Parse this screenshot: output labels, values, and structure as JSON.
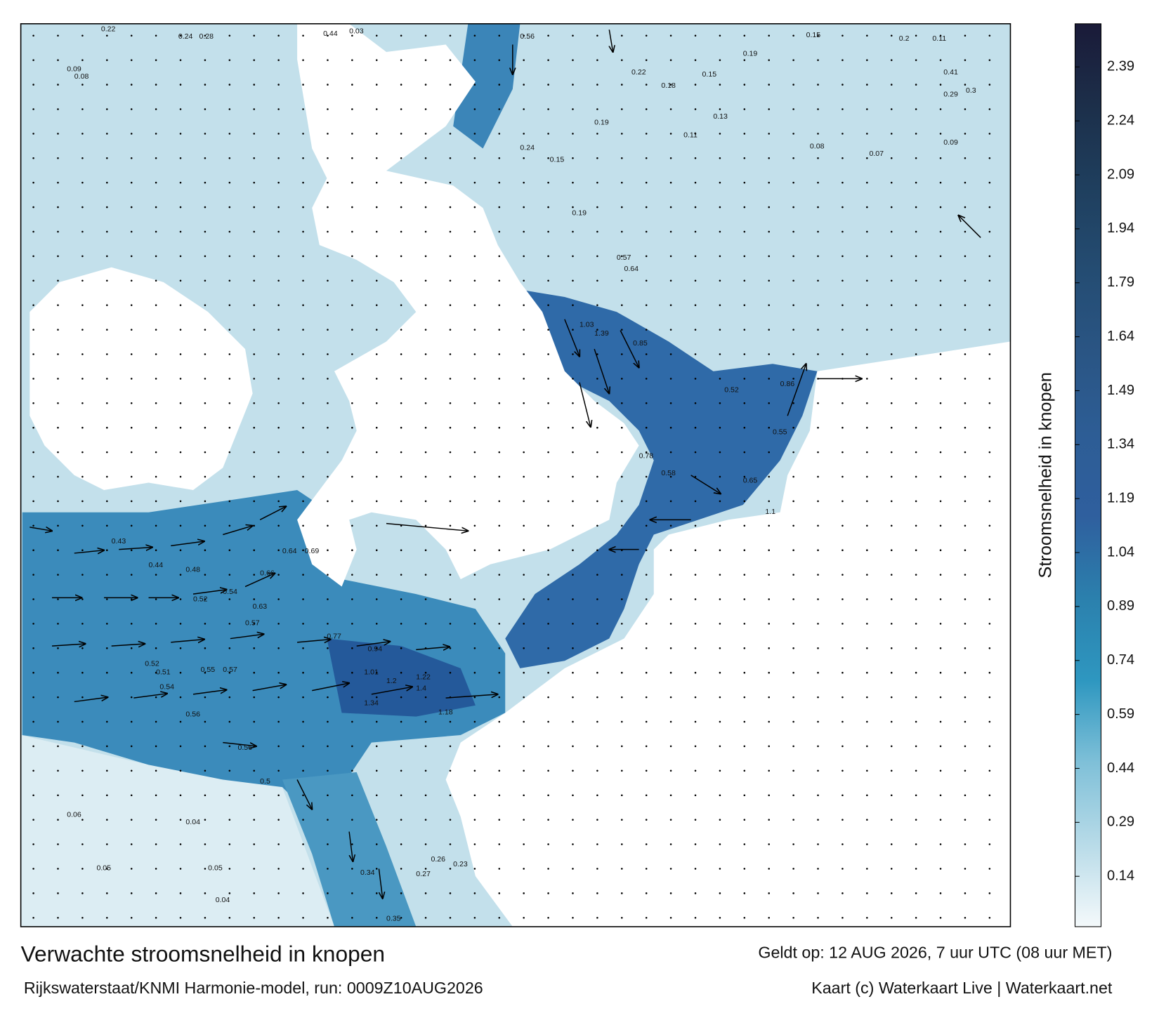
{
  "title": "Verwachte stroomsnelheid in knopen",
  "source": "Rijkswaterstaat/KNMI Harmonie-model, run: 0009Z10AUG2026",
  "valid": "Geldt op: 12 AUG 2026, 7 uur UTC (08 uur MET)",
  "credit": "Kaart (c) Waterkaart Live | Waterkaart.net",
  "colorbar": {
    "label": "Stroomsnelheid in knopen",
    "lim": [
      0,
      2.51
    ],
    "ticks": [
      0.14,
      0.29,
      0.44,
      0.59,
      0.74,
      0.89,
      1.04,
      1.19,
      1.34,
      1.49,
      1.64,
      1.79,
      1.94,
      2.09,
      2.24,
      2.39
    ],
    "colors": [
      "#f4f9fb",
      "#b8dbe8",
      "#7fc0d8",
      "#2e97c0",
      "#2b80ad",
      "#2f5f9e",
      "#2d5d95",
      "#2a5584",
      "#244c72",
      "#1f3f5e",
      "#1c2f4a",
      "#1a1a38"
    ]
  },
  "map": {
    "speed_labels": [
      0.22,
      0.24,
      0.28,
      0.09,
      0.08,
      0.15,
      0.2,
      0.11,
      0.03,
      0.44,
      0.56,
      0.19,
      0.22,
      0.18,
      0.15,
      0.41,
      0.29,
      0.3,
      0.13,
      0.11,
      0.19,
      0.24,
      0.15,
      0.08,
      0.07,
      0.09,
      0.19,
      0.57,
      0.64,
      1.03,
      1.39,
      0.85,
      0.52,
      0.86,
      0.55,
      0.78,
      0.58,
      0.65,
      1.1,
      0.43,
      0.44,
      0.48,
      0.52,
      0.54,
      0.66,
      0.64,
      0.69,
      0.52,
      0.51,
      0.55,
      0.57,
      0.54,
      0.56,
      0.56,
      0.5,
      1.01,
      1.2,
      1.22,
      1.34,
      1.18,
      1.4,
      0.77,
      0.94,
      0.57,
      0.63,
      0.27,
      0.26,
      0.34,
      0.35,
      0.23,
      0.05,
      0.05,
      0.04,
      0.06,
      0.04
    ]
  }
}
